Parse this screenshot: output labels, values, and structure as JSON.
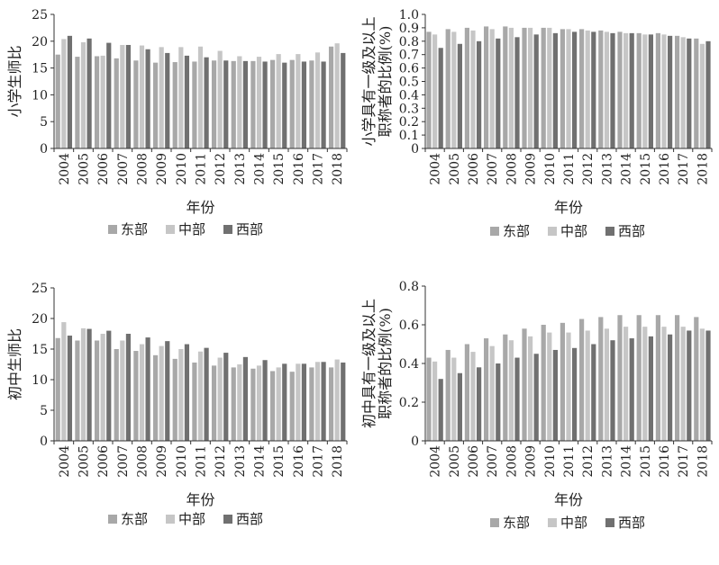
{
  "colors": {
    "东部": "#a8a8a8",
    "中部": "#c6c6c6",
    "西部": "#707070"
  },
  "chart_data": [
    {
      "type": "bar",
      "categories": [
        "2004",
        "2005",
        "2006",
        "2007",
        "2008",
        "2009",
        "2010",
        "2011",
        "2012",
        "2013",
        "2014",
        "2015",
        "2016",
        "2017",
        "2018"
      ],
      "series": [
        {
          "name": "东部",
          "values": [
            17.5,
            17.1,
            17.2,
            16.8,
            16.4,
            16.0,
            16.1,
            16.2,
            16.4,
            16.3,
            16.3,
            16.5,
            16.5,
            16.4,
            19.0
          ]
        },
        {
          "name": "中部",
          "values": [
            20.4,
            19.8,
            17.3,
            19.3,
            19.2,
            18.9,
            18.9,
            19.0,
            18.2,
            17.2,
            17.1,
            17.6,
            17.6,
            17.9,
            19.6
          ]
        },
        {
          "name": "西部",
          "values": [
            21.0,
            20.5,
            19.7,
            19.3,
            18.5,
            17.8,
            17.3,
            17.0,
            16.4,
            16.3,
            16.2,
            16.0,
            16.2,
            16.2,
            17.8
          ]
        }
      ],
      "xlabel": "年份",
      "ylabel": "小学生师比",
      "ylim": [
        0,
        25
      ],
      "yticks": [
        "0",
        "5",
        "10",
        "15",
        "20",
        "25"
      ],
      "grid": false,
      "legend": "bottom"
    },
    {
      "type": "bar",
      "categories": [
        "2004",
        "2005",
        "2006",
        "2007",
        "2008",
        "2009",
        "2010",
        "2011",
        "2012",
        "2013",
        "2014",
        "2015",
        "2016",
        "2017",
        "2018"
      ],
      "series": [
        {
          "name": "东部",
          "values": [
            0.87,
            0.89,
            0.9,
            0.91,
            0.91,
            0.9,
            0.9,
            0.89,
            0.89,
            0.88,
            0.87,
            0.86,
            0.86,
            0.84,
            0.82
          ]
        },
        {
          "name": "中部",
          "values": [
            0.85,
            0.87,
            0.88,
            0.89,
            0.9,
            0.9,
            0.9,
            0.89,
            0.88,
            0.87,
            0.86,
            0.85,
            0.85,
            0.83,
            0.78
          ]
        },
        {
          "name": "西部",
          "values": [
            0.75,
            0.78,
            0.8,
            0.82,
            0.83,
            0.85,
            0.86,
            0.87,
            0.87,
            0.86,
            0.86,
            0.85,
            0.84,
            0.82,
            0.8
          ]
        }
      ],
      "xlabel": "年份",
      "ylabel": "小学具有一级及以上职称者的比例(%)",
      "ylabel_lines": [
        "小学具有一级及以上",
        "职称者的比例(%)"
      ],
      "ylim": [
        0,
        1.0
      ],
      "yticks": [
        "0",
        "0.1",
        "0.2",
        "0.3",
        "0.4",
        "0.5",
        "0.6",
        "0.7",
        "0.8",
        "0.9",
        "1.0"
      ],
      "grid": false,
      "legend": "bottom"
    },
    {
      "type": "bar",
      "categories": [
        "2004",
        "2005",
        "2006",
        "2007",
        "2008",
        "2009",
        "2010",
        "2011",
        "2012",
        "2013",
        "2014",
        "2015",
        "2016",
        "2017",
        "2018"
      ],
      "series": [
        {
          "name": "东部",
          "values": [
            16.8,
            16.4,
            16.4,
            15.0,
            14.7,
            14.0,
            13.4,
            12.8,
            12.3,
            12.0,
            11.8,
            11.4,
            11.3,
            12.0,
            12.0
          ]
        },
        {
          "name": "中部",
          "values": [
            19.4,
            18.4,
            17.5,
            16.4,
            15.8,
            15.5,
            15.0,
            14.6,
            13.6,
            12.5,
            12.3,
            12.0,
            12.6,
            12.9,
            13.3
          ]
        },
        {
          "name": "西部",
          "values": [
            17.2,
            18.3,
            18.0,
            17.5,
            16.9,
            16.3,
            15.8,
            15.2,
            14.4,
            13.7,
            13.2,
            12.6,
            12.6,
            12.9,
            12.8
          ]
        }
      ],
      "xlabel": "年份",
      "ylabel": "初中生师比",
      "ylim": [
        0,
        25
      ],
      "yticks": [
        "0",
        "5",
        "10",
        "15",
        "20",
        "25"
      ],
      "grid": false,
      "legend": "bottom"
    },
    {
      "type": "bar",
      "categories": [
        "2004",
        "2005",
        "2006",
        "2007",
        "2008",
        "2009",
        "2010",
        "2011",
        "2012",
        "2013",
        "2014",
        "2015",
        "2016",
        "2017",
        "2018"
      ],
      "series": [
        {
          "name": "东部",
          "values": [
            0.43,
            0.47,
            0.5,
            0.53,
            0.55,
            0.58,
            0.6,
            0.61,
            0.63,
            0.64,
            0.65,
            0.65,
            0.65,
            0.65,
            0.64
          ]
        },
        {
          "name": "中部",
          "values": [
            0.41,
            0.43,
            0.46,
            0.49,
            0.52,
            0.54,
            0.56,
            0.56,
            0.57,
            0.58,
            0.59,
            0.59,
            0.59,
            0.59,
            0.58
          ]
        },
        {
          "name": "西部",
          "values": [
            0.32,
            0.35,
            0.38,
            0.4,
            0.43,
            0.45,
            0.47,
            0.48,
            0.5,
            0.52,
            0.53,
            0.54,
            0.55,
            0.57,
            0.57
          ]
        }
      ],
      "xlabel": "年份",
      "ylabel": "初中具有一级及以上职称者的比例(%)",
      "ylabel_lines": [
        "初中具有一级及以上",
        "职称者的比例(%)"
      ],
      "ylim": [
        0,
        0.8
      ],
      "yticks": [
        "0",
        "0.2",
        "0.4",
        "0.6",
        "0.8"
      ],
      "grid": false,
      "legend": "bottom"
    }
  ]
}
